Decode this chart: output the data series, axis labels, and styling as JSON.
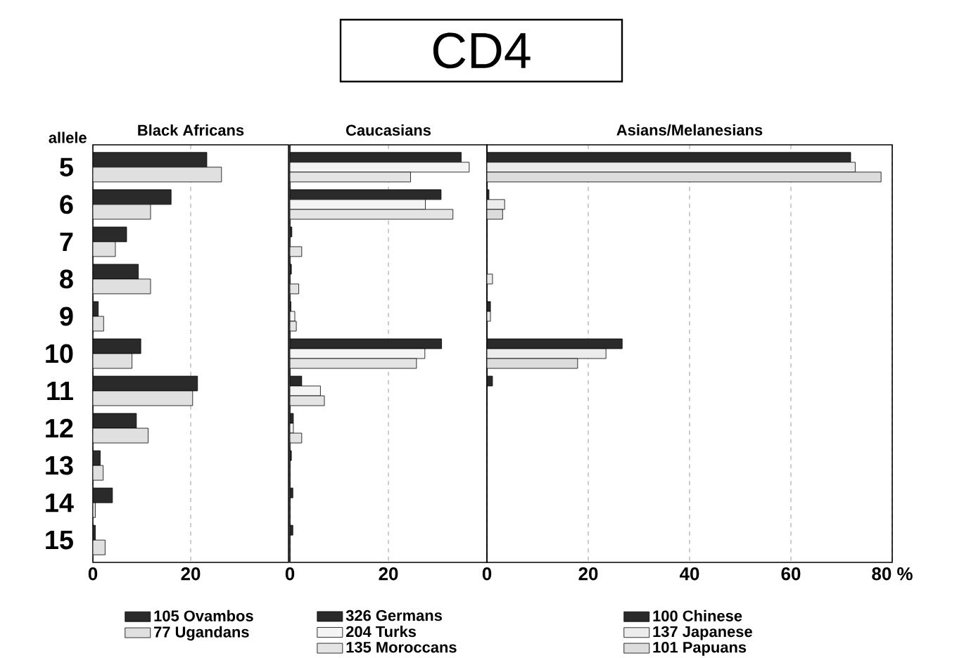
{
  "chart_data": [
    {
      "type": "bar",
      "orientation": "horizontal",
      "annotations": [
        "CD4"
      ],
      "subtitle": "Black Africans",
      "ylabel": "allele",
      "categories": [
        "5",
        "6",
        "7",
        "8",
        "9",
        "10",
        "11",
        "12",
        "13",
        "14",
        "15"
      ],
      "xlim": [
        0,
        40
      ],
      "xticks": [
        0,
        20
      ],
      "grid": "x",
      "legend": "bottom",
      "series": [
        {
          "name": "105 Ovambos",
          "color": "#2a2a2a",
          "values": [
            23.3,
            16.0,
            6.9,
            9.3,
            1.1,
            9.8,
            21.4,
            8.9,
            1.5,
            4.0,
            0.5
          ]
        },
        {
          "name": "77 Ugandans",
          "color": "#e0e0e0",
          "values": [
            26.3,
            11.8,
            4.6,
            11.8,
            2.2,
            8.0,
            20.4,
            11.3,
            2.1,
            0.5,
            2.5
          ]
        }
      ]
    },
    {
      "type": "bar",
      "orientation": "horizontal",
      "subtitle": "Caucasians",
      "categories": [
        "5",
        "6",
        "7",
        "8",
        "9",
        "10",
        "11",
        "12",
        "13",
        "14",
        "15"
      ],
      "xlim": [
        0,
        40
      ],
      "xticks": [
        0,
        20
      ],
      "grid": "x",
      "legend": "bottom",
      "tick_labels": "x",
      "series": [
        {
          "name": "326 Germans",
          "color": "#2a2a2a",
          "values": [
            34.8,
            30.7,
            0.4,
            0.3,
            0.2,
            30.8,
            2.4,
            0.7,
            0.3,
            0.6,
            0.6
          ]
        },
        {
          "name": "204 Turks",
          "color": "#f4f4f4",
          "values": [
            36.4,
            27.5,
            null,
            null,
            1.0,
            27.4,
            6.2,
            0.7,
            null,
            null,
            null
          ]
        },
        {
          "name": "135 Moroccans",
          "color": "#e4e4e4",
          "values": [
            24.5,
            33.1,
            2.4,
            1.8,
            1.3,
            25.7,
            7.0,
            2.4,
            null,
            null,
            null
          ]
        }
      ]
    },
    {
      "type": "bar",
      "orientation": "horizontal",
      "subtitle": "Asians/Melanesians",
      "categories": [
        "5",
        "6",
        "7",
        "8",
        "9",
        "10",
        "11",
        "12",
        "13",
        "14",
        "15"
      ],
      "xlim": [
        0,
        80
      ],
      "xticks": [
        0,
        20,
        40,
        60,
        {
          "value": 80,
          "label": "80 %"
        }
      ],
      "grid": "x",
      "legend": "bottom",
      "tick_labels": "x",
      "series": [
        {
          "name": "100 Chinese",
          "color": "#2a2a2a",
          "values": [
            71.8,
            0.4,
            null,
            null,
            0.7,
            26.7,
            1.1,
            null,
            null,
            null,
            null
          ]
        },
        {
          "name": "137 Japanese",
          "color": "#ececec",
          "values": [
            72.7,
            3.5,
            null,
            1.1,
            0.7,
            23.5,
            null,
            null,
            null,
            null,
            null
          ]
        },
        {
          "name": "101 Papuans",
          "color": "#dcdcdc",
          "values": [
            77.8,
            3.1,
            null,
            null,
            null,
            17.9,
            null,
            null,
            null,
            null,
            null
          ]
        }
      ]
    }
  ]
}
